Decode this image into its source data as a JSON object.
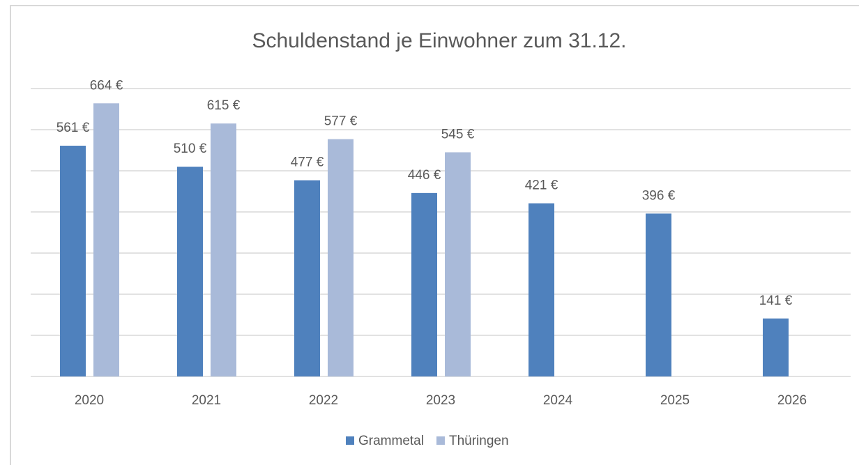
{
  "chart_data": {
    "type": "bar",
    "title": "Schuldenstand je Einwohner zum 31.12.",
    "categories": [
      "2020",
      "2021",
      "2022",
      "2023",
      "2024",
      "2025",
      "2026"
    ],
    "series": [
      {
        "name": "Grammetal",
        "color": "#4f81bd",
        "values": [
          561,
          510,
          477,
          446,
          421,
          396,
          141
        ],
        "value_labels": [
          "561 €",
          "510 €",
          "477 €",
          "446 €",
          "421 €",
          "396 €",
          "141 €"
        ]
      },
      {
        "name": "Thüringen",
        "color": "#a9bad9",
        "values": [
          664,
          615,
          577,
          545,
          null,
          null,
          null
        ],
        "value_labels": [
          "664 €",
          "615 €",
          "577 €",
          "545 €",
          null,
          null,
          null
        ]
      }
    ],
    "ylim": [
      0,
      700
    ],
    "yticks": [
      0,
      100,
      200,
      300,
      400,
      500,
      600,
      700
    ],
    "grid": true,
    "legend": "bottom"
  }
}
